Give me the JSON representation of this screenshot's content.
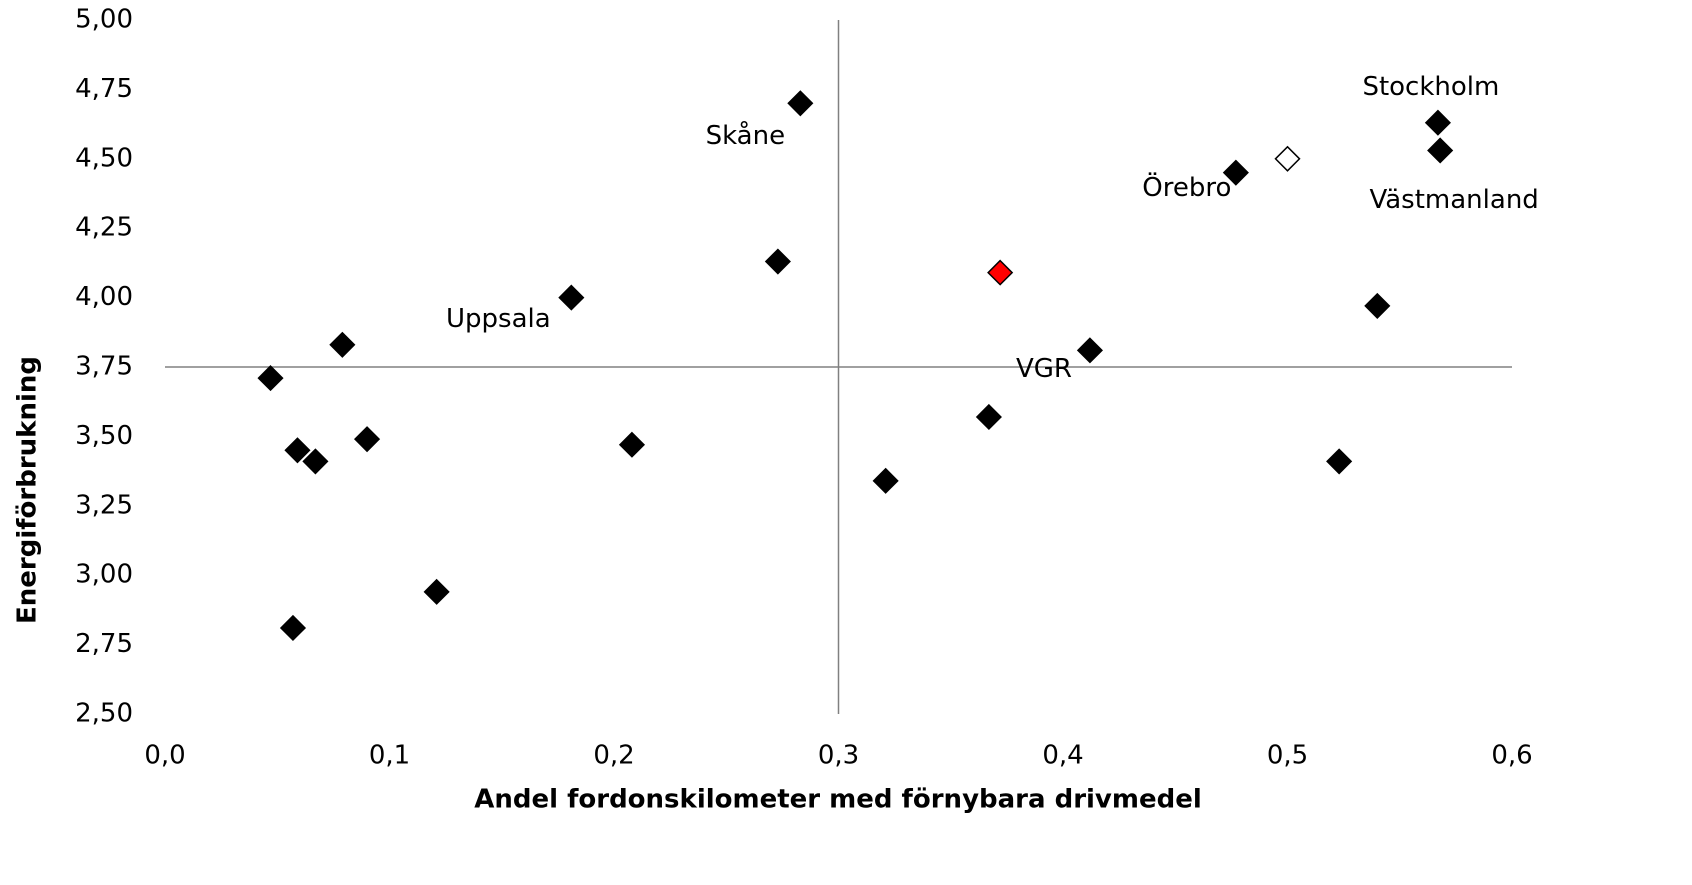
{
  "chart_data": {
    "type": "scatter",
    "xlabel": "Andel fordonskilometer  med förnybara drivmedel",
    "ylabel": "Energiförbrukning",
    "xlim": [
      0,
      0.6
    ],
    "ylim": [
      2.5,
      5
    ],
    "xticks": [
      {
        "value": 0,
        "label": "0,0"
      },
      {
        "value": 0.1,
        "label": "0,1"
      },
      {
        "value": 0.2,
        "label": "0,2"
      },
      {
        "value": 0.3,
        "label": "0,3"
      },
      {
        "value": 0.4,
        "label": "0,4"
      },
      {
        "value": 0.5,
        "label": "0,5"
      },
      {
        "value": 0.6,
        "label": "0,6"
      }
    ],
    "yticks": [
      {
        "value": 2.5,
        "label": "2,50"
      },
      {
        "value": 2.75,
        "label": "2,75"
      },
      {
        "value": 3,
        "label": "3,00"
      },
      {
        "value": 3.25,
        "label": "3,25"
      },
      {
        "value": 3.5,
        "label": "3,50"
      },
      {
        "value": 3.75,
        "label": "3,75"
      },
      {
        "value": 4,
        "label": "4,00"
      },
      {
        "value": 4.25,
        "label": "4,25"
      },
      {
        "value": 4.5,
        "label": "4,50"
      },
      {
        "value": 4.75,
        "label": "4,75"
      },
      {
        "value": 5,
        "label": "5,00"
      }
    ],
    "reference_x": 0.3,
    "reference_y": 3.75,
    "series": [
      {
        "color": "#000000",
        "fill": "#000000",
        "x": [
          0.047,
          0.059,
          0.067,
          0.079,
          0.09,
          0.057,
          0.121,
          0.181,
          0.208,
          0.273,
          0.283,
          0.321,
          0.367,
          0.412,
          0.477,
          0.523,
          0.54,
          0.567,
          0.568
        ],
        "values": [
          3.71,
          3.45,
          3.41,
          3.83,
          3.49,
          2.81,
          2.94,
          4.0,
          3.47,
          4.13,
          4.7,
          3.34,
          3.57,
          3.81,
          4.45,
          3.41,
          3.97,
          4.63,
          4.53
        ]
      },
      {
        "color": "#000000",
        "fill": "#ff0000",
        "x": [
          0.372
        ],
        "values": [
          4.09
        ]
      },
      {
        "color": "#000000",
        "fill": "#ffffff",
        "x": [
          0.5
        ],
        "values": [
          4.5
        ]
      }
    ],
    "annotations": [
      {
        "text": "Skåne",
        "point": 10
      },
      {
        "text": "Uppsala",
        "point": 7
      },
      {
        "text": "VGR",
        "point": 13
      },
      {
        "text": "Örebro",
        "point": 14
      },
      {
        "text": "Stockholm",
        "point": 17
      },
      {
        "text": "Västmanland",
        "point": 18
      }
    ]
  }
}
